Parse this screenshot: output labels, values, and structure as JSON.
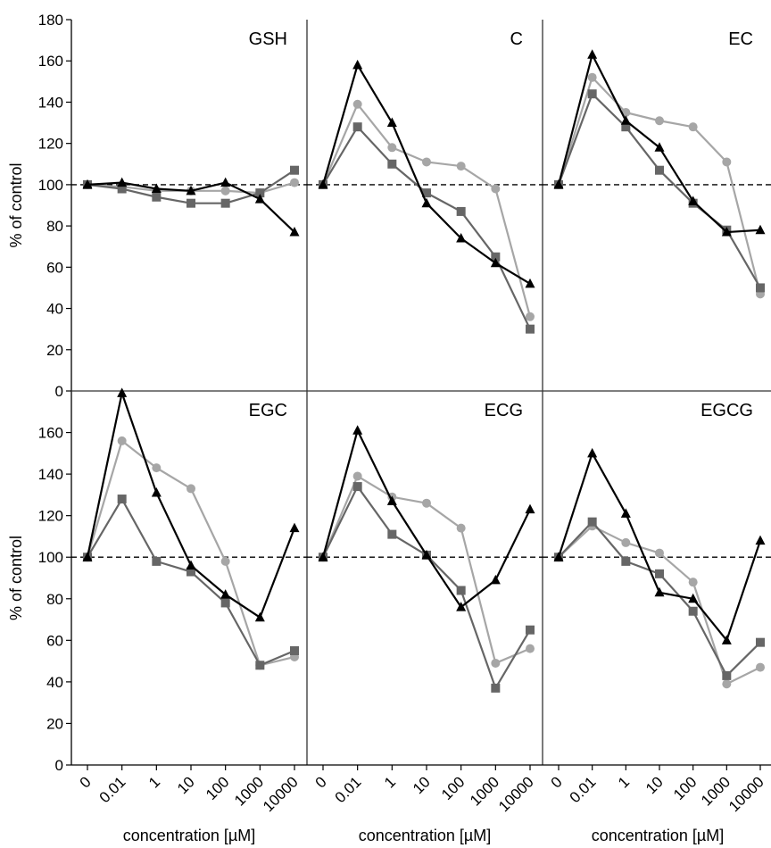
{
  "chart_data": {
    "type": "line",
    "layout": "2x3 panel grid, shared axes",
    "x_categories": [
      "0",
      "0.01",
      "1",
      "10",
      "100",
      "1000",
      "10000"
    ],
    "xlabel": "concentration [µM]",
    "ylabel": "% of control",
    "ylim": [
      0,
      180
    ],
    "y_ticks_top_row": [
      0,
      20,
      40,
      60,
      80,
      100,
      120,
      140,
      160,
      180
    ],
    "y_ticks_bottom_row": [
      0,
      20,
      40,
      60,
      80,
      100,
      120,
      140,
      160
    ],
    "reference_line": {
      "y": 100,
      "style": "dashed",
      "color": "#000000"
    },
    "grid": false,
    "legend": "none",
    "series_style": [
      {
        "marker": "circle",
        "color": "#a6a6a6"
      },
      {
        "marker": "square",
        "color": "#666666"
      },
      {
        "marker": "triangle",
        "color": "#000000"
      }
    ],
    "panels": [
      {
        "title": "GSH",
        "series": [
          {
            "values": [
              100,
              99,
              97,
              97,
              97,
              96,
              101
            ]
          },
          {
            "values": [
              100,
              98,
              94,
              91,
              91,
              96,
              107
            ]
          },
          {
            "values": [
              100,
              101,
              98,
              97,
              101,
              93,
              77
            ]
          }
        ]
      },
      {
        "title": "C",
        "series": [
          {
            "values": [
              100,
              139,
              118,
              111,
              109,
              98,
              36
            ]
          },
          {
            "values": [
              100,
              128,
              110,
              96,
              87,
              65,
              30
            ]
          },
          {
            "values": [
              100,
              158,
              130,
              91,
              74,
              62,
              52
            ]
          }
        ]
      },
      {
        "title": "EC",
        "series": [
          {
            "values": [
              100,
              152,
              135,
              131,
              128,
              111,
              47
            ]
          },
          {
            "values": [
              100,
              144,
              128,
              107,
              91,
              78,
              50
            ]
          },
          {
            "values": [
              100,
              163,
              131,
              118,
              92,
              77,
              78
            ]
          }
        ]
      },
      {
        "title": "EGC",
        "series": [
          {
            "values": [
              100,
              156,
              143,
              133,
              98,
              48,
              52
            ]
          },
          {
            "values": [
              100,
              128,
              98,
              93,
              78,
              48,
              55
            ]
          },
          {
            "values": [
              100,
              179,
              131,
              96,
              82,
              71,
              114
            ]
          }
        ]
      },
      {
        "title": "ECG",
        "series": [
          {
            "values": [
              100,
              139,
              129,
              126,
              114,
              49,
              56
            ]
          },
          {
            "values": [
              100,
              134,
              111,
              101,
              84,
              37,
              65
            ]
          },
          {
            "values": [
              100,
              161,
              127,
              101,
              76,
              89,
              123
            ]
          }
        ]
      },
      {
        "title": "EGCG",
        "series": [
          {
            "values": [
              100,
              115,
              107,
              102,
              88,
              39,
              47
            ]
          },
          {
            "values": [
              100,
              117,
              98,
              92,
              74,
              43,
              59
            ]
          },
          {
            "values": [
              100,
              150,
              121,
              83,
              80,
              60,
              108
            ]
          }
        ]
      }
    ]
  }
}
